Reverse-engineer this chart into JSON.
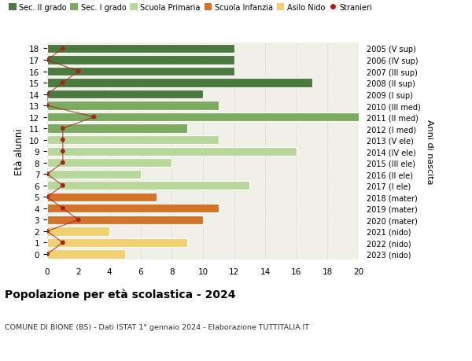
{
  "ages": [
    18,
    17,
    16,
    15,
    14,
    13,
    12,
    11,
    10,
    9,
    8,
    7,
    6,
    5,
    4,
    3,
    2,
    1,
    0
  ],
  "bar_values": [
    12,
    12,
    12,
    17,
    10,
    11,
    20,
    9,
    11,
    16,
    8,
    6,
    13,
    7,
    11,
    10,
    4,
    9,
    5
  ],
  "stranieri": [
    1,
    0,
    2,
    1,
    0,
    0,
    3,
    1,
    1,
    1,
    1,
    0,
    1,
    0,
    1,
    2,
    0,
    1,
    0
  ],
  "right_labels": [
    "2005 (V sup)",
    "2006 (IV sup)",
    "2007 (III sup)",
    "2008 (II sup)",
    "2009 (I sup)",
    "2010 (III med)",
    "2011 (II med)",
    "2012 (I med)",
    "2013 (V ele)",
    "2014 (IV ele)",
    "2015 (III ele)",
    "2016 (II ele)",
    "2017 (I ele)",
    "2018 (mater)",
    "2019 (mater)",
    "2020 (mater)",
    "2021 (nido)",
    "2022 (nido)",
    "2023 (nido)"
  ],
  "bar_colors": [
    "#4a7a3d",
    "#4a7a3d",
    "#4a7a3d",
    "#4a7a3d",
    "#4a7a3d",
    "#7aab5e",
    "#7aab5e",
    "#7aab5e",
    "#b8d89a",
    "#b8d89a",
    "#b8d89a",
    "#b8d89a",
    "#b8d89a",
    "#d4732a",
    "#d4732a",
    "#d4732a",
    "#f0d070",
    "#f0d070",
    "#f0d070"
  ],
  "legend_labels": [
    "Sec. II grado",
    "Sec. I grado",
    "Scuola Primaria",
    "Scuola Infanzia",
    "Asilo Nido",
    "Stranieri"
  ],
  "legend_colors": [
    "#4a7a3d",
    "#7aab5e",
    "#b8d89a",
    "#d4732a",
    "#f0d070",
    "#a82020"
  ],
  "ylabel": "Età alunni",
  "ylabel_right": "Anni di nascita",
  "title": "Popolazione per età scolastica - 2024",
  "subtitle": "COMUNE DI BIONE (BS) - Dati ISTAT 1° gennaio 2024 - Elaborazione TUTTITALIA.IT",
  "xlim": [
    0,
    20
  ],
  "xticks": [
    0,
    2,
    4,
    6,
    8,
    10,
    12,
    14,
    16,
    18,
    20
  ],
  "background_color": "#ffffff",
  "axes_bg_color": "#f0f0e8",
  "stranieri_color": "#a82020",
  "grid_color": "#cccccc"
}
